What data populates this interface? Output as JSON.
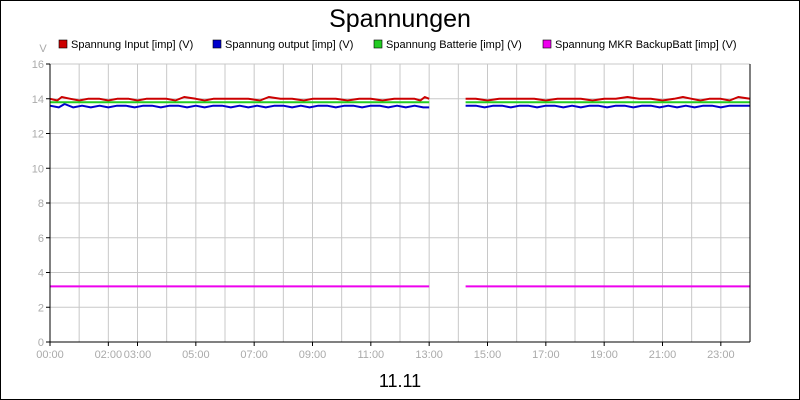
{
  "chart_data": {
    "type": "line",
    "title": "Spannungen",
    "xlabel": "11.11",
    "ylabel": "V",
    "xlim": [
      0,
      24
    ],
    "ylim": [
      0,
      16
    ],
    "grid": true,
    "legend_position": "top",
    "y_ticks": [
      0,
      2,
      4,
      6,
      8,
      10,
      12,
      14,
      16
    ],
    "x_ticks": [
      {
        "value": 0,
        "label": "00:00"
      },
      {
        "value": 2,
        "label": "02:00"
      },
      {
        "value": 3,
        "label": "03:00"
      },
      {
        "value": 5,
        "label": "05:00"
      },
      {
        "value": 7,
        "label": "07:00"
      },
      {
        "value": 9,
        "label": "09:00"
      },
      {
        "value": 11,
        "label": "11:00"
      },
      {
        "value": 13,
        "label": "13:00"
      },
      {
        "value": 15,
        "label": "15:00"
      },
      {
        "value": 17,
        "label": "17:00"
      },
      {
        "value": 19,
        "label": "19:00"
      },
      {
        "value": 21,
        "label": "21:00"
      },
      {
        "value": 23,
        "label": "23:00"
      }
    ],
    "x_gridlines": [
      0,
      1,
      2,
      3,
      4,
      5,
      6,
      7,
      8,
      9,
      10,
      11,
      12,
      13,
      14,
      15,
      16,
      17,
      18,
      19,
      20,
      21,
      22,
      23,
      24
    ],
    "gap": [
      13.0,
      14.25
    ],
    "series": [
      {
        "name": "Spannung Input [imp] (V)",
        "color": "#cc0000",
        "segments": [
          [
            [
              0.0,
              14.0
            ],
            [
              0.25,
              13.9
            ],
            [
              0.4,
              14.1
            ],
            [
              0.7,
              14.0
            ],
            [
              1.0,
              13.9
            ],
            [
              1.3,
              14.0
            ],
            [
              1.7,
              14.0
            ],
            [
              2.0,
              13.9
            ],
            [
              2.3,
              14.0
            ],
            [
              2.7,
              14.0
            ],
            [
              3.0,
              13.9
            ],
            [
              3.3,
              14.0
            ],
            [
              3.7,
              14.0
            ],
            [
              4.0,
              14.0
            ],
            [
              4.3,
              13.9
            ],
            [
              4.6,
              14.1
            ],
            [
              5.0,
              14.0
            ],
            [
              5.3,
              13.9
            ],
            [
              5.6,
              14.0
            ],
            [
              6.0,
              14.0
            ],
            [
              6.4,
              14.0
            ],
            [
              6.8,
              14.0
            ],
            [
              7.2,
              13.9
            ],
            [
              7.5,
              14.1
            ],
            [
              7.9,
              14.0
            ],
            [
              8.3,
              14.0
            ],
            [
              8.7,
              13.9
            ],
            [
              9.0,
              14.0
            ],
            [
              9.4,
              14.0
            ],
            [
              9.8,
              14.0
            ],
            [
              10.2,
              13.9
            ],
            [
              10.6,
              14.0
            ],
            [
              11.0,
              14.0
            ],
            [
              11.4,
              13.9
            ],
            [
              11.8,
              14.0
            ],
            [
              12.2,
              14.0
            ],
            [
              12.5,
              14.0
            ],
            [
              12.7,
              13.9
            ],
            [
              12.85,
              14.1
            ],
            [
              13.0,
              14.0
            ]
          ],
          [
            [
              14.25,
              14.0
            ],
            [
              14.6,
              14.0
            ],
            [
              15.0,
              13.9
            ],
            [
              15.4,
              14.0
            ],
            [
              15.8,
              14.0
            ],
            [
              16.2,
              14.0
            ],
            [
              16.6,
              14.0
            ],
            [
              17.0,
              13.9
            ],
            [
              17.4,
              14.0
            ],
            [
              17.8,
              14.0
            ],
            [
              18.2,
              14.0
            ],
            [
              18.6,
              13.9
            ],
            [
              19.0,
              14.0
            ],
            [
              19.4,
              14.0
            ],
            [
              19.8,
              14.1
            ],
            [
              20.2,
              14.0
            ],
            [
              20.6,
              14.0
            ],
            [
              21.0,
              13.9
            ],
            [
              21.4,
              14.0
            ],
            [
              21.7,
              14.1
            ],
            [
              22.0,
              14.0
            ],
            [
              22.3,
              13.9
            ],
            [
              22.6,
              14.0
            ],
            [
              23.0,
              14.0
            ],
            [
              23.3,
              13.9
            ],
            [
              23.6,
              14.1
            ],
            [
              24.0,
              14.0
            ]
          ]
        ]
      },
      {
        "name": "Spannung output [imp] (V)",
        "color": "#0000cc",
        "segments": [
          [
            [
              0.0,
              13.6
            ],
            [
              0.3,
              13.5
            ],
            [
              0.5,
              13.7
            ],
            [
              0.8,
              13.5
            ],
            [
              1.1,
              13.6
            ],
            [
              1.4,
              13.5
            ],
            [
              1.7,
              13.6
            ],
            [
              2.0,
              13.5
            ],
            [
              2.3,
              13.6
            ],
            [
              2.6,
              13.6
            ],
            [
              2.9,
              13.5
            ],
            [
              3.2,
              13.6
            ],
            [
              3.5,
              13.6
            ],
            [
              3.8,
              13.5
            ],
            [
              4.1,
              13.6
            ],
            [
              4.4,
              13.6
            ],
            [
              4.7,
              13.5
            ],
            [
              5.0,
              13.6
            ],
            [
              5.3,
              13.5
            ],
            [
              5.6,
              13.6
            ],
            [
              5.9,
              13.6
            ],
            [
              6.2,
              13.5
            ],
            [
              6.5,
              13.6
            ],
            [
              6.8,
              13.5
            ],
            [
              7.1,
              13.6
            ],
            [
              7.4,
              13.5
            ],
            [
              7.7,
              13.6
            ],
            [
              8.0,
              13.6
            ],
            [
              8.3,
              13.5
            ],
            [
              8.6,
              13.6
            ],
            [
              8.9,
              13.5
            ],
            [
              9.2,
              13.6
            ],
            [
              9.5,
              13.6
            ],
            [
              9.8,
              13.5
            ],
            [
              10.1,
              13.6
            ],
            [
              10.4,
              13.6
            ],
            [
              10.7,
              13.5
            ],
            [
              11.0,
              13.6
            ],
            [
              11.3,
              13.6
            ],
            [
              11.6,
              13.5
            ],
            [
              11.9,
              13.6
            ],
            [
              12.2,
              13.5
            ],
            [
              12.5,
              13.6
            ],
            [
              12.8,
              13.5
            ],
            [
              13.0,
              13.5
            ]
          ],
          [
            [
              14.25,
              13.6
            ],
            [
              14.6,
              13.6
            ],
            [
              14.9,
              13.5
            ],
            [
              15.2,
              13.6
            ],
            [
              15.5,
              13.6
            ],
            [
              15.8,
              13.5
            ],
            [
              16.1,
              13.6
            ],
            [
              16.4,
              13.6
            ],
            [
              16.7,
              13.5
            ],
            [
              17.0,
              13.6
            ],
            [
              17.3,
              13.6
            ],
            [
              17.6,
              13.5
            ],
            [
              17.9,
              13.6
            ],
            [
              18.2,
              13.5
            ],
            [
              18.5,
              13.6
            ],
            [
              18.8,
              13.6
            ],
            [
              19.1,
              13.5
            ],
            [
              19.4,
              13.6
            ],
            [
              19.7,
              13.6
            ],
            [
              20.0,
              13.5
            ],
            [
              20.3,
              13.6
            ],
            [
              20.6,
              13.6
            ],
            [
              20.9,
              13.5
            ],
            [
              21.2,
              13.6
            ],
            [
              21.5,
              13.5
            ],
            [
              21.8,
              13.6
            ],
            [
              22.1,
              13.5
            ],
            [
              22.4,
              13.6
            ],
            [
              22.7,
              13.6
            ],
            [
              23.0,
              13.5
            ],
            [
              23.3,
              13.6
            ],
            [
              23.6,
              13.6
            ],
            [
              24.0,
              13.6
            ]
          ]
        ]
      },
      {
        "name": "Spannung Batterie [imp] (V)",
        "color": "#22cc22",
        "segments": [
          [
            [
              0.0,
              13.8
            ],
            [
              3.0,
              13.8
            ],
            [
              6.0,
              13.8
            ],
            [
              9.0,
              13.8
            ],
            [
              12.0,
              13.8
            ],
            [
              13.0,
              13.8
            ]
          ],
          [
            [
              14.25,
              13.8
            ],
            [
              17.0,
              13.8
            ],
            [
              20.0,
              13.8
            ],
            [
              24.0,
              13.8
            ]
          ]
        ]
      },
      {
        "name": "Spannung MKR BackupBatt [imp] (V)",
        "color": "#ee00ee",
        "segments": [
          [
            [
              0.0,
              3.2
            ],
            [
              13.0,
              3.2
            ]
          ],
          [
            [
              14.25,
              3.2
            ],
            [
              24.0,
              3.2
            ]
          ]
        ]
      }
    ]
  }
}
